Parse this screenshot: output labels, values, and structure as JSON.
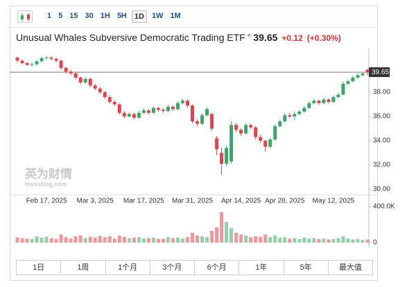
{
  "toolbar": {
    "intervals": [
      "1",
      "5",
      "15",
      "30",
      "1H",
      "5H",
      "1D",
      "1W",
      "1M"
    ],
    "active": "1D"
  },
  "header": {
    "title": "Unusual Whales Subversive Democratic Trading ETF",
    "marker": "*",
    "price": "39.65",
    "change": "+0.12",
    "change_pct": "(+0.30%)"
  },
  "chart_data": {
    "type": "candlestick",
    "categories": [
      null,
      null,
      null,
      null,
      null,
      null,
      "Feb 17, 2025",
      null,
      null,
      null,
      null,
      null,
      null,
      null,
      null,
      null,
      "Mar 3, 2025",
      null,
      null,
      null,
      null,
      null,
      null,
      null,
      null,
      null,
      "Mar 17, 2025",
      null,
      null,
      null,
      null,
      null,
      null,
      null,
      null,
      null,
      "Mar 31, 2025",
      null,
      null,
      null,
      null,
      null,
      null,
      null,
      null,
      null,
      "Apr 14, 2025",
      null,
      null,
      null,
      null,
      null,
      null,
      null,
      null,
      "Apr 28, 2025",
      null,
      null,
      null,
      null,
      null,
      null,
      null,
      null,
      null,
      "May 12, 2025",
      null,
      null,
      null,
      null,
      null,
      null,
      null
    ],
    "open": [
      40.85,
      40.6,
      40.4,
      40.25,
      40.3,
      40.55,
      40.8,
      40.85,
      40.75,
      40.6,
      40.0,
      39.7,
      39.55,
      39.2,
      38.8,
      39.1,
      38.55,
      38.3,
      38.0,
      37.6,
      37.2,
      37.0,
      36.3,
      36.0,
      36.2,
      35.9,
      36.3,
      36.5,
      36.3,
      36.7,
      36.55,
      36.45,
      36.8,
      36.6,
      37.1,
      37.3,
      36.9,
      35.6,
      35.4,
      36.1,
      36.2,
      34.2,
      33.0,
      32.1,
      32.3,
      35.3,
      34.9,
      34.6,
      35.3,
      35.1,
      34.3,
      34.0,
      33.5,
      34.1,
      35.2,
      35.6,
      36.1,
      36.0,
      36.2,
      36.4,
      36.7,
      37.1,
      37.3,
      37.1,
      37.4,
      37.2,
      37.6,
      37.8,
      38.7,
      38.9,
      39.2,
      39.4,
      39.85
    ],
    "high": [
      40.95,
      40.7,
      40.5,
      40.45,
      40.65,
      40.95,
      41.0,
      40.95,
      40.85,
      40.7,
      40.1,
      39.85,
      39.65,
      39.3,
      39.25,
      39.2,
      38.7,
      38.45,
      38.1,
      37.75,
      37.35,
      37.1,
      36.45,
      36.35,
      36.3,
      36.45,
      36.65,
      36.6,
      36.85,
      36.8,
      36.7,
      36.95,
      36.9,
      37.25,
      37.45,
      37.4,
      37.0,
      35.75,
      36.25,
      36.75,
      36.3,
      34.4,
      33.4,
      33.6,
      35.6,
      35.45,
      35.05,
      35.45,
      35.4,
      35.2,
      34.5,
      34.1,
      34.25,
      35.35,
      35.75,
      36.25,
      36.3,
      36.4,
      36.55,
      36.85,
      37.25,
      37.45,
      37.4,
      37.55,
      37.5,
      37.75,
      37.95,
      38.85,
      39.05,
      39.35,
      39.55,
      39.65,
      39.95
    ],
    "low": [
      40.45,
      40.3,
      40.15,
      40.1,
      40.2,
      40.45,
      40.7,
      40.6,
      40.45,
      39.85,
      39.55,
      39.4,
      39.05,
      38.65,
      38.7,
      38.4,
      38.15,
      37.85,
      37.45,
      37.05,
      36.85,
      36.15,
      35.85,
      35.9,
      35.75,
      35.8,
      36.2,
      36.15,
      36.2,
      36.4,
      36.3,
      36.35,
      36.45,
      36.5,
      37.0,
      36.75,
      35.45,
      35.2,
      35.3,
      36.0,
      34.8,
      32.8,
      31.2,
      31.9,
      32.1,
      34.7,
      34.4,
      34.5,
      34.95,
      34.1,
      33.8,
      33.1,
      33.4,
      34.0,
      35.1,
      35.5,
      35.85,
      35.7,
      36.1,
      36.3,
      36.6,
      37.0,
      36.95,
      37.0,
      37.05,
      37.1,
      37.5,
      37.75,
      38.6,
      38.8,
      39.1,
      39.3,
      39.4
    ],
    "close": [
      40.6,
      40.4,
      40.25,
      40.3,
      40.55,
      40.8,
      40.85,
      40.75,
      40.6,
      40.0,
      39.7,
      39.55,
      39.2,
      38.8,
      39.1,
      38.55,
      38.3,
      38.0,
      37.6,
      37.2,
      37.0,
      36.3,
      36.0,
      36.2,
      35.9,
      36.3,
      36.5,
      36.3,
      36.7,
      36.55,
      36.45,
      36.8,
      36.6,
      37.1,
      37.3,
      36.9,
      35.6,
      35.4,
      36.1,
      36.6,
      35.0,
      33.3,
      32.1,
      33.4,
      35.3,
      34.9,
      34.6,
      35.3,
      35.1,
      34.3,
      34.0,
      33.5,
      34.1,
      35.2,
      35.6,
      36.1,
      36.0,
      36.2,
      36.4,
      36.7,
      37.1,
      37.3,
      37.1,
      37.4,
      37.2,
      37.6,
      37.8,
      38.7,
      38.9,
      39.2,
      39.4,
      39.53,
      39.65
    ],
    "volume": [
      60000,
      50000,
      45000,
      40000,
      70000,
      55000,
      65000,
      50000,
      40000,
      90000,
      60000,
      45000,
      70000,
      80000,
      50000,
      65000,
      55000,
      75000,
      60000,
      70000,
      45000,
      80000,
      65000,
      50000,
      55000,
      60000,
      45000,
      50000,
      55000,
      40000,
      45000,
      60000,
      50000,
      55000,
      45000,
      60000,
      110000,
      80000,
      70000,
      60000,
      130000,
      170000,
      340000,
      230000,
      160000,
      110000,
      90000,
      80000,
      60000,
      70000,
      65000,
      90000,
      60000,
      80000,
      55000,
      60000,
      45000,
      50000,
      40000,
      55000,
      45000,
      50000,
      40000,
      45000,
      35000,
      40000,
      50000,
      70000,
      45000,
      35000,
      40000,
      30000,
      35000
    ],
    "ylim": [
      29.6,
      41.2
    ],
    "yticks": [
      {
        "value": 30,
        "label": "30.00"
      },
      {
        "value": 32,
        "label": "32.00"
      },
      {
        "value": 34,
        "label": "34.00"
      },
      {
        "value": 36,
        "label": "36.00"
      },
      {
        "value": 38,
        "label": "38.00"
      }
    ],
    "volume_lim": [
      0,
      400000
    ],
    "volume_ticks": [
      0,
      {
        "value": 400000,
        "label": "400.0K"
      }
    ],
    "last_price": {
      "value": 39.65,
      "label": "39.65"
    },
    "up_color": "#3aa66a",
    "down_color": "#e0434d",
    "watermark": [
      "英为财情",
      "Investing.com"
    ]
  },
  "ranges": [
    "1日",
    "1周",
    "1个月",
    "3个月",
    "6个月",
    "1年",
    "5年",
    "最大值"
  ]
}
